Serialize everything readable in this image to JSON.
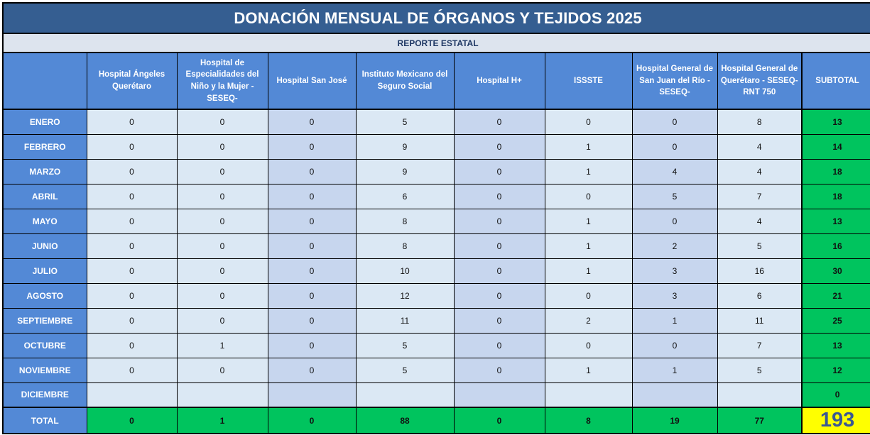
{
  "title": "DONACIÓN MENSUAL DE ÓRGANOS Y TEJIDOS 2025",
  "subtitle": "REPORTE ESTATAL",
  "table": {
    "columns": [
      "Hospital Ángeles Querétaro",
      "Hospital de Especialidades del Niño y la Mujer - SESEQ-",
      "Hospital San José",
      "Instituto Mexicano del Seguro Social",
      "Hospital H+",
      "ISSSTE",
      "Hospital General de San Juan del Río -SESEQ-",
      "Hospital General de Querétaro - SESEQ- RNT 750",
      "SUBTOTAL"
    ],
    "rows": [
      {
        "month": "ENERO",
        "values": [
          0,
          0,
          0,
          5,
          0,
          0,
          0,
          8
        ],
        "subtotal": 13
      },
      {
        "month": "FEBRERO",
        "values": [
          0,
          0,
          0,
          9,
          0,
          1,
          0,
          4
        ],
        "subtotal": 14
      },
      {
        "month": "MARZO",
        "values": [
          0,
          0,
          0,
          9,
          0,
          1,
          4,
          4
        ],
        "subtotal": 18
      },
      {
        "month": "ABRIL",
        "values": [
          0,
          0,
          0,
          6,
          0,
          0,
          5,
          7
        ],
        "subtotal": 18
      },
      {
        "month": "MAYO",
        "values": [
          0,
          0,
          0,
          8,
          0,
          1,
          0,
          4
        ],
        "subtotal": 13
      },
      {
        "month": "JUNIO",
        "values": [
          0,
          0,
          0,
          8,
          0,
          1,
          2,
          5
        ],
        "subtotal": 16
      },
      {
        "month": "JULIO",
        "values": [
          0,
          0,
          0,
          10,
          0,
          1,
          3,
          16
        ],
        "subtotal": 30
      },
      {
        "month": "AGOSTO",
        "values": [
          0,
          0,
          0,
          12,
          0,
          0,
          3,
          6
        ],
        "subtotal": 21
      },
      {
        "month": "SEPTIEMBRE",
        "values": [
          0,
          0,
          0,
          11,
          0,
          2,
          1,
          11
        ],
        "subtotal": 25
      },
      {
        "month": "OCTUBRE",
        "values": [
          0,
          1,
          0,
          5,
          0,
          0,
          0,
          7
        ],
        "subtotal": 13
      },
      {
        "month": "NOVIEMBRE",
        "values": [
          0,
          0,
          0,
          5,
          0,
          1,
          1,
          5
        ],
        "subtotal": 12
      },
      {
        "month": "DICIEMBRE",
        "values": [
          "",
          "",
          "",
          "",
          "",
          "",
          "",
          ""
        ],
        "subtotal": 0
      }
    ],
    "total_row": {
      "label": "TOTAL",
      "values": [
        0,
        1,
        0,
        88,
        0,
        8,
        19,
        77
      ],
      "grand_total": 193
    }
  },
  "colors": {
    "title_bg": "#355E91",
    "subtitle_bg": "#DDE4EE",
    "subtitle_text": "#1F3864",
    "header_bg": "#5389D6",
    "cell_light": "#DBE8F4",
    "cell_dark": "#C7D6EE",
    "subtotal_green": "#00C45E",
    "total_yellow": "#FFFF00",
    "grand_total_text": "#3A5894"
  }
}
